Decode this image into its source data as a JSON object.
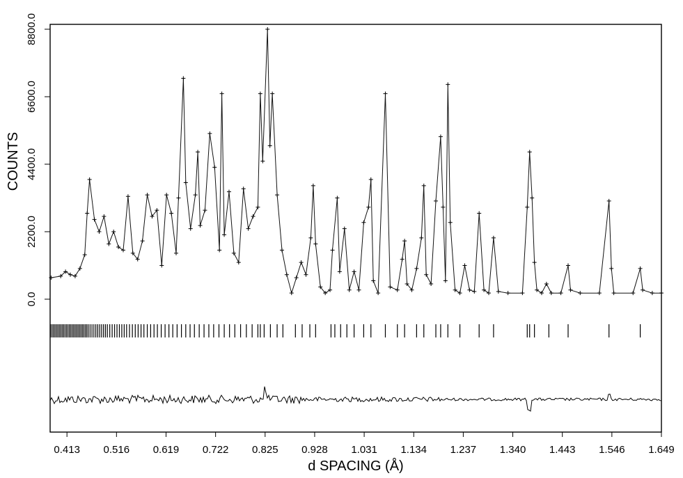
{
  "chart_data": {
    "type": "line",
    "title": "",
    "xlabel": "d SPACING (Å)",
    "ylabel": "COUNTS",
    "xlim": [
      0.378,
      1.649
    ],
    "ylim": [
      0.0,
      8800.0
    ],
    "x_tick_labels": [
      "0.413",
      "0.516",
      "0.619",
      "0.722",
      "0.825",
      "0.928",
      "1.031",
      "1.134",
      "1.237",
      "1.340",
      "1.443",
      "1.546",
      "1.649"
    ],
    "y_tick_labels": [
      "0.0",
      "2200.0",
      "4400.0",
      "6600.0",
      "8800.0"
    ],
    "grid": false,
    "series": [
      {
        "role": "observed counts (+ markers)",
        "points": [
          [
            0.38,
            700
          ],
          [
            0.4,
            750
          ],
          [
            0.41,
            900
          ],
          [
            0.42,
            800
          ],
          [
            0.43,
            750
          ],
          [
            0.44,
            1000
          ],
          [
            0.45,
            1450
          ],
          [
            0.455,
            2800
          ],
          [
            0.46,
            3900
          ],
          [
            0.47,
            2600
          ],
          [
            0.48,
            2200
          ],
          [
            0.49,
            2700
          ],
          [
            0.5,
            1800
          ],
          [
            0.51,
            2200
          ],
          [
            0.52,
            1700
          ],
          [
            0.53,
            1600
          ],
          [
            0.54,
            3350
          ],
          [
            0.55,
            1500
          ],
          [
            0.56,
            1300
          ],
          [
            0.57,
            1900
          ],
          [
            0.58,
            3400
          ],
          [
            0.59,
            2700
          ],
          [
            0.6,
            2900
          ],
          [
            0.61,
            1100
          ],
          [
            0.62,
            3400
          ],
          [
            0.63,
            2800
          ],
          [
            0.64,
            1500
          ],
          [
            0.645,
            3300
          ],
          [
            0.655,
            7200
          ],
          [
            0.66,
            3800
          ],
          [
            0.67,
            2300
          ],
          [
            0.68,
            3400
          ],
          [
            0.685,
            4800
          ],
          [
            0.69,
            2400
          ],
          [
            0.7,
            2900
          ],
          [
            0.71,
            5400
          ],
          [
            0.72,
            4300
          ],
          [
            0.73,
            1600
          ],
          [
            0.735,
            6700
          ],
          [
            0.74,
            2100
          ],
          [
            0.75,
            3500
          ],
          [
            0.76,
            1500
          ],
          [
            0.77,
            1200
          ],
          [
            0.78,
            3600
          ],
          [
            0.79,
            2300
          ],
          [
            0.8,
            2700
          ],
          [
            0.81,
            3000
          ],
          [
            0.815,
            6700
          ],
          [
            0.82,
            4500
          ],
          [
            0.83,
            8800
          ],
          [
            0.835,
            5000
          ],
          [
            0.84,
            6700
          ],
          [
            0.85,
            3400
          ],
          [
            0.86,
            1600
          ],
          [
            0.87,
            800
          ],
          [
            0.88,
            200
          ],
          [
            0.89,
            700
          ],
          [
            0.9,
            1200
          ],
          [
            0.91,
            800
          ],
          [
            0.92,
            2000
          ],
          [
            0.925,
            3700
          ],
          [
            0.93,
            1800
          ],
          [
            0.94,
            400
          ],
          [
            0.95,
            200
          ],
          [
            0.96,
            300
          ],
          [
            0.965,
            1600
          ],
          [
            0.975,
            3300
          ],
          [
            0.98,
            900
          ],
          [
            0.99,
            2300
          ],
          [
            1.0,
            300
          ],
          [
            1.01,
            900
          ],
          [
            1.02,
            300
          ],
          [
            1.03,
            2500
          ],
          [
            1.04,
            3000
          ],
          [
            1.045,
            3900
          ],
          [
            1.05,
            600
          ],
          [
            1.06,
            200
          ],
          [
            1.075,
            6700
          ],
          [
            1.085,
            400
          ],
          [
            1.1,
            300
          ],
          [
            1.11,
            1300
          ],
          [
            1.115,
            1900
          ],
          [
            1.12,
            500
          ],
          [
            1.13,
            300
          ],
          [
            1.14,
            1000
          ],
          [
            1.15,
            2000
          ],
          [
            1.155,
            3700
          ],
          [
            1.16,
            800
          ],
          [
            1.17,
            500
          ],
          [
            1.18,
            3200
          ],
          [
            1.19,
            5300
          ],
          [
            1.195,
            3000
          ],
          [
            1.2,
            600
          ],
          [
            1.205,
            7000
          ],
          [
            1.21,
            2500
          ],
          [
            1.22,
            300
          ],
          [
            1.23,
            200
          ],
          [
            1.24,
            1100
          ],
          [
            1.25,
            300
          ],
          [
            1.26,
            250
          ],
          [
            1.27,
            2800
          ],
          [
            1.28,
            300
          ],
          [
            1.29,
            200
          ],
          [
            1.3,
            2000
          ],
          [
            1.31,
            250
          ],
          [
            1.33,
            200
          ],
          [
            1.36,
            200
          ],
          [
            1.37,
            3000
          ],
          [
            1.375,
            4800
          ],
          [
            1.38,
            3300
          ],
          [
            1.385,
            1200
          ],
          [
            1.39,
            300
          ],
          [
            1.4,
            200
          ],
          [
            1.41,
            500
          ],
          [
            1.42,
            200
          ],
          [
            1.44,
            200
          ],
          [
            1.455,
            1100
          ],
          [
            1.46,
            300
          ],
          [
            1.48,
            200
          ],
          [
            1.52,
            200
          ],
          [
            1.54,
            3200
          ],
          [
            1.545,
            1000
          ],
          [
            1.55,
            200
          ],
          [
            1.59,
            200
          ],
          [
            1.605,
            1000
          ],
          [
            1.61,
            300
          ],
          [
            1.63,
            200
          ],
          [
            1.649,
            200
          ]
        ]
      }
    ],
    "reflection_markers_d": [
      0.379,
      0.382,
      0.385,
      0.388,
      0.391,
      0.394,
      0.397,
      0.4,
      0.403,
      0.406,
      0.409,
      0.412,
      0.415,
      0.418,
      0.421,
      0.424,
      0.427,
      0.43,
      0.433,
      0.436,
      0.439,
      0.442,
      0.445,
      0.448,
      0.451,
      0.454,
      0.457,
      0.461,
      0.465,
      0.469,
      0.473,
      0.477,
      0.481,
      0.485,
      0.489,
      0.493,
      0.497,
      0.502,
      0.507,
      0.512,
      0.517,
      0.522,
      0.527,
      0.532,
      0.537,
      0.543,
      0.549,
      0.555,
      0.561,
      0.567,
      0.573,
      0.58,
      0.587,
      0.594,
      0.601,
      0.609,
      0.617,
      0.625,
      0.633,
      0.642,
      0.651,
      0.66,
      0.669,
      0.678,
      0.688,
      0.698,
      0.708,
      0.718,
      0.729,
      0.74,
      0.751,
      0.762,
      0.774,
      0.786,
      0.798,
      0.81,
      0.815,
      0.823,
      0.836,
      0.85,
      0.862,
      0.888,
      0.902,
      0.918,
      0.93,
      0.962,
      0.97,
      0.982,
      0.995,
      1.01,
      1.03,
      1.045,
      1.075,
      1.1,
      1.115,
      1.14,
      1.155,
      1.18,
      1.19,
      1.205,
      1.23,
      1.27,
      1.3,
      1.37,
      1.375,
      1.385,
      1.415,
      1.455,
      1.54,
      1.605
    ],
    "difference_curve": {
      "baseline_note": "observed minus calculated, plotted below reflection markers",
      "features": [
        {
          "d": 0.44,
          "magnitude": "high noise"
        },
        {
          "d": 0.8,
          "magnitude": "moderate noise"
        },
        {
          "d": 0.825,
          "magnitude": "spike up"
        },
        {
          "d": 1.375,
          "magnitude": "dip down"
        },
        {
          "d": 1.54,
          "magnitude": "small spike"
        }
      ]
    }
  }
}
